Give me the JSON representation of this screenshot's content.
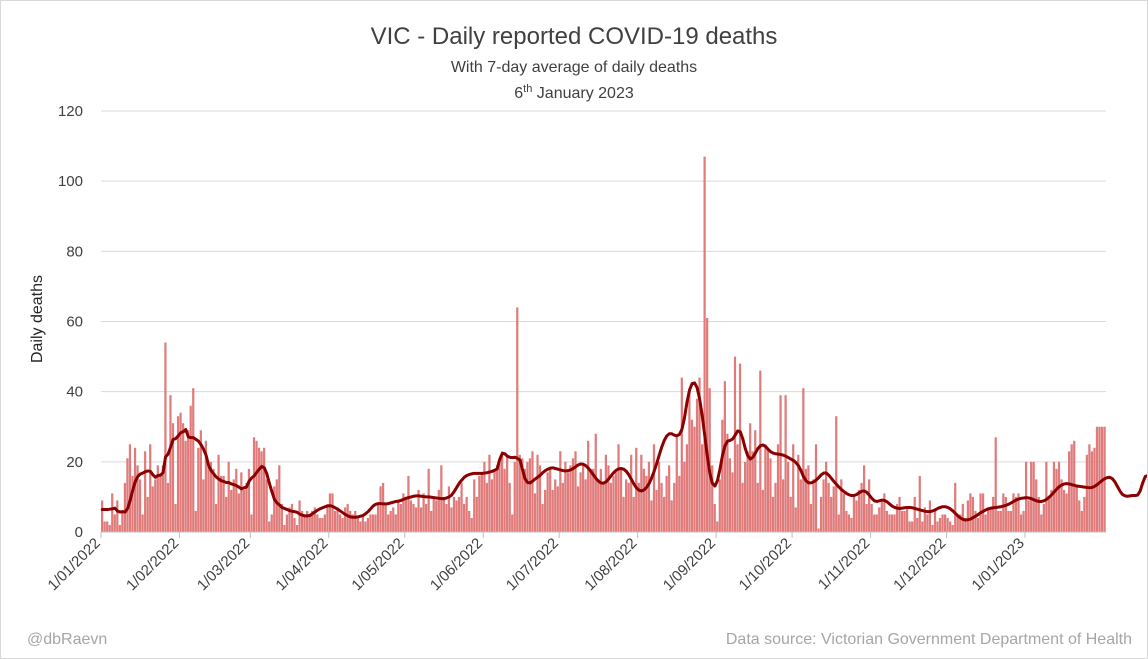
{
  "chart_data": {
    "type": "bar",
    "title": "VIC - Daily reported COVID-19 deaths",
    "subtitle": "With 7-day average of daily deaths",
    "date_prefix": "6",
    "date_suffix": "th",
    "date_rest": " January 2023",
    "ylabel": "Daily deaths",
    "ylim": [
      0,
      120
    ],
    "yticks": [
      "0",
      "20",
      "40",
      "60",
      "80",
      "100",
      "120"
    ],
    "xlabels": [
      "1/01/2022",
      "1/02/2022",
      "1/03/2022",
      "1/04/2022",
      "1/05/2022",
      "1/06/2022",
      "1/07/2022",
      "1/08/2022",
      "1/09/2022",
      "1/10/2022",
      "1/11/2022",
      "1/12/2022",
      "1/01/2023"
    ],
    "xlabel_day_index": [
      0,
      31,
      59,
      90,
      120,
      151,
      181,
      212,
      243,
      273,
      304,
      334,
      365
    ],
    "grid": true,
    "bar_color": "#e07b7b",
    "line_color": "#8b0000",
    "series": [
      {
        "name": "Daily deaths",
        "values": [
          9,
          3,
          3,
          2,
          11,
          5,
          9,
          2,
          6,
          14,
          21,
          25,
          16,
          24,
          19,
          15,
          5,
          23,
          10,
          25,
          13,
          15,
          19,
          16,
          19,
          54,
          14,
          39,
          31,
          8,
          33,
          34,
          31,
          26,
          29,
          36,
          41,
          6,
          24,
          29,
          15,
          26,
          19,
          20,
          18,
          8,
          22,
          16,
          16,
          10,
          20,
          12,
          15,
          18,
          11,
          17,
          12,
          14,
          18,
          5,
          27,
          26,
          24,
          23,
          24,
          15,
          3,
          5,
          13,
          15,
          19,
          8,
          2,
          5,
          7,
          8,
          4,
          2,
          9,
          6,
          5,
          6,
          5,
          6,
          7,
          5,
          4,
          4,
          5,
          8,
          11,
          11,
          6,
          7,
          5,
          4,
          7,
          8,
          6,
          5,
          6,
          4,
          3,
          5,
          3,
          4,
          5,
          5,
          5,
          8,
          13,
          14,
          8,
          5,
          6,
          7,
          5,
          9,
          8,
          11,
          10,
          16,
          9,
          8,
          7,
          12,
          7,
          11,
          8,
          18,
          6,
          10,
          9,
          12,
          19,
          10,
          8,
          13,
          7,
          10,
          9,
          10,
          14,
          8,
          10,
          6,
          4,
          15,
          10,
          16,
          17,
          20,
          14,
          22,
          15,
          18,
          19,
          20,
          23,
          18,
          22,
          14,
          5,
          20,
          64,
          22,
          21,
          18,
          20,
          21,
          23,
          11,
          22,
          19,
          8,
          12,
          17,
          18,
          12,
          15,
          13,
          23,
          14,
          20,
          17,
          19,
          21,
          23,
          13,
          17,
          19,
          15,
          26,
          18,
          18,
          28,
          15,
          18,
          14,
          22,
          19,
          14,
          16,
          17,
          25,
          18,
          10,
          15,
          14,
          22,
          10,
          24,
          14,
          22,
          18,
          16,
          20,
          9,
          25,
          12,
          20,
          14,
          10,
          16,
          19,
          9,
          14,
          27,
          16,
          44,
          20,
          25,
          40,
          32,
          30,
          38,
          44,
          25,
          107,
          61,
          41,
          19,
          8,
          3,
          15,
          32,
          43,
          28,
          21,
          17,
          50,
          25,
          48,
          14,
          20,
          23,
          31,
          23,
          29,
          14,
          46,
          12,
          25,
          24,
          21,
          10,
          14,
          25,
          39,
          15,
          39,
          20,
          10,
          25,
          7,
          22,
          15,
          41,
          18,
          19,
          8,
          15,
          25,
          1,
          10,
          15,
          20,
          14,
          10,
          13,
          33,
          5,
          15,
          11,
          6,
          5,
          4,
          10,
          9,
          12,
          14,
          19,
          8,
          15,
          8,
          5,
          5,
          7,
          9,
          11,
          6,
          5,
          5,
          5,
          8,
          10,
          6,
          6,
          7,
          3,
          3,
          10,
          4,
          16,
          3,
          7,
          5,
          9,
          2,
          6,
          3,
          4,
          5,
          5,
          4,
          3,
          2,
          14,
          5,
          5,
          8,
          4,
          9,
          11,
          10,
          6,
          4,
          11,
          11,
          5,
          7,
          7,
          10,
          27,
          6,
          6,
          11,
          10,
          6,
          6,
          11,
          10,
          11,
          5,
          6,
          20,
          9,
          20,
          20,
          15,
          10,
          5,
          8,
          20,
          10,
          12,
          20,
          18,
          20,
          15,
          12,
          11,
          23,
          25,
          26,
          13,
          9,
          6,
          10,
          22,
          25,
          23,
          24,
          30,
          30,
          30,
          30
        ]
      },
      {
        "name": "7-day average",
        "values": [
          6.4,
          6.4,
          6.4,
          6.5,
          6.6,
          6.8,
          6.0,
          5.7,
          5.8,
          5.7,
          6.7,
          9.0,
          11.8,
          14.3,
          15.8,
          16.5,
          16.8,
          17.2,
          17.4,
          17.3,
          16.3,
          15.6,
          16.1,
          16.2,
          16.9,
          21.4,
          22.2,
          24.2,
          26.4,
          26.6,
          27.4,
          28.3,
          28.6,
          29.2,
          27.1,
          26.9,
          26.9,
          26.4,
          25.9,
          24.9,
          23.6,
          21.9,
          19.0,
          17.5,
          16.6,
          15.7,
          15.1,
          14.6,
          14.4,
          14.1,
          14.1,
          13.7,
          13.5,
          13.2,
          12.8,
          12.3,
          12.6,
          12.8,
          14.5,
          15.4,
          16.0,
          17.0,
          17.9,
          18.7,
          18.3,
          16.6,
          13.9,
          11.5,
          9.3,
          8.3,
          7.7,
          7.0,
          6.7,
          6.4,
          6.1,
          5.9,
          5.8,
          5.6,
          5.1,
          4.8,
          4.6,
          4.6,
          4.7,
          5.2,
          5.7,
          6.2,
          6.6,
          6.9,
          7.2,
          7.4,
          7.5,
          7.3,
          6.9,
          6.5,
          6.0,
          5.5,
          5.0,
          4.6,
          4.3,
          4.2,
          4.2,
          4.3,
          4.5,
          4.7,
          5.2,
          5.8,
          6.6,
          7.4,
          7.9,
          8.1,
          8.1,
          8.0,
          8.0,
          8.1,
          8.3,
          8.5,
          8.7,
          8.8,
          9.0,
          9.3,
          9.6,
          9.8,
          10.0,
          10.2,
          10.3,
          10.3,
          10.2,
          10.1,
          10.0,
          10.0,
          9.9,
          9.8,
          9.7,
          9.6,
          9.5,
          9.5,
          9.7,
          10.0,
          10.5,
          11.5,
          12.7,
          13.9,
          14.8,
          15.6,
          16.1,
          16.4,
          16.6,
          16.7,
          16.7,
          16.7,
          16.7,
          16.8,
          16.9,
          17.1,
          17.3,
          17.6,
          18.0,
          20.7,
          22.4,
          22.3,
          21.6,
          21.3,
          21.2,
          21.3,
          21.0,
          20.5,
          17.8,
          15.2,
          14.1,
          14.0,
          14.5,
          15.1,
          15.6,
          16.2,
          16.9,
          17.5,
          17.9,
          18.2,
          18.3,
          18.1,
          17.9,
          17.7,
          17.5,
          17.4,
          17.5,
          17.7,
          18.1,
          18.6,
          19.1,
          19.4,
          19.3,
          18.9,
          18.2,
          17.3,
          16.3,
          15.3,
          14.5,
          14.0,
          13.9,
          14.3,
          15.1,
          16.0,
          16.9,
          17.6,
          18.0,
          18.1,
          17.9,
          17.3,
          16.3,
          15.0,
          13.7,
          12.6,
          11.9,
          11.7,
          12.0,
          12.7,
          13.8,
          15.4,
          17.3,
          19.5,
          21.9,
          24.2,
          26.1,
          27.4,
          28.0,
          28.0,
          27.6,
          27.4,
          27.8,
          29.3,
          32.6,
          37.1,
          40.5,
          42.3,
          42.5,
          41.1,
          37.8,
          33.1,
          27.5,
          21.7,
          16.8,
          13.9,
          13.1,
          14.6,
          17.9,
          21.8,
          24.6,
          25.9,
          26.1,
          26.5,
          27.6,
          28.8,
          28.6,
          26.6,
          23.8,
          21.7,
          20.8,
          21.3,
          22.5,
          23.8,
          24.6,
          24.8,
          24.4,
          23.6,
          22.9,
          22.5,
          22.3,
          22.2,
          22.1,
          21.9,
          21.6,
          21.2,
          20.8,
          20.4,
          19.8,
          18.9,
          17.5,
          15.8,
          14.6,
          14.0,
          14.0,
          14.3,
          14.8,
          15.5,
          16.3,
          16.8,
          16.8,
          16.2,
          15.3,
          14.4,
          13.6,
          12.8,
          12.1,
          11.5,
          11.0,
          10.6,
          10.4,
          10.4,
          10.7,
          11.2,
          11.6,
          11.7,
          11.3,
          10.5,
          9.6,
          8.9,
          8.7,
          8.9,
          9.1,
          9.0,
          8.6,
          8.0,
          7.4,
          7.0,
          6.8,
          6.7,
          6.8,
          6.9,
          7.0,
          7.0,
          6.9,
          6.7,
          6.5,
          6.3,
          6.1,
          5.9,
          5.8,
          5.8,
          6.0,
          6.3,
          6.7,
          7.0,
          7.2,
          7.2,
          7.0,
          6.6,
          6.0,
          5.3,
          4.6,
          4.0,
          3.6,
          3.4,
          3.5,
          3.7,
          4.1,
          4.5,
          5.0,
          5.5,
          5.9,
          6.3,
          6.6,
          6.8,
          6.9,
          7.0,
          7.1,
          7.2,
          7.4,
          7.6,
          7.9,
          8.3,
          8.7,
          9.1,
          9.4,
          9.6,
          9.7,
          9.8,
          9.7,
          9.5,
          9.2,
          8.9,
          8.7,
          8.7,
          8.9,
          9.3,
          9.9,
          10.6,
          11.4,
          12.2,
          12.9,
          13.4,
          13.7,
          13.8,
          13.7,
          13.5,
          13.3,
          13.1,
          13.0,
          12.9,
          12.8,
          12.7,
          12.6,
          12.7,
          13.0,
          13.5,
          14.1,
          14.7,
          15.2,
          15.5,
          15.6,
          15.2,
          14.3,
          13.0,
          11.7,
          10.7,
          10.3,
          10.2,
          10.3,
          10.4,
          10.4,
          10.5,
          11.7,
          14.0,
          15.8,
          16.1
        ]
      }
    ]
  },
  "footer": {
    "left": "@dbRaevn",
    "right": "Data source: Victorian Government Department of Health"
  }
}
